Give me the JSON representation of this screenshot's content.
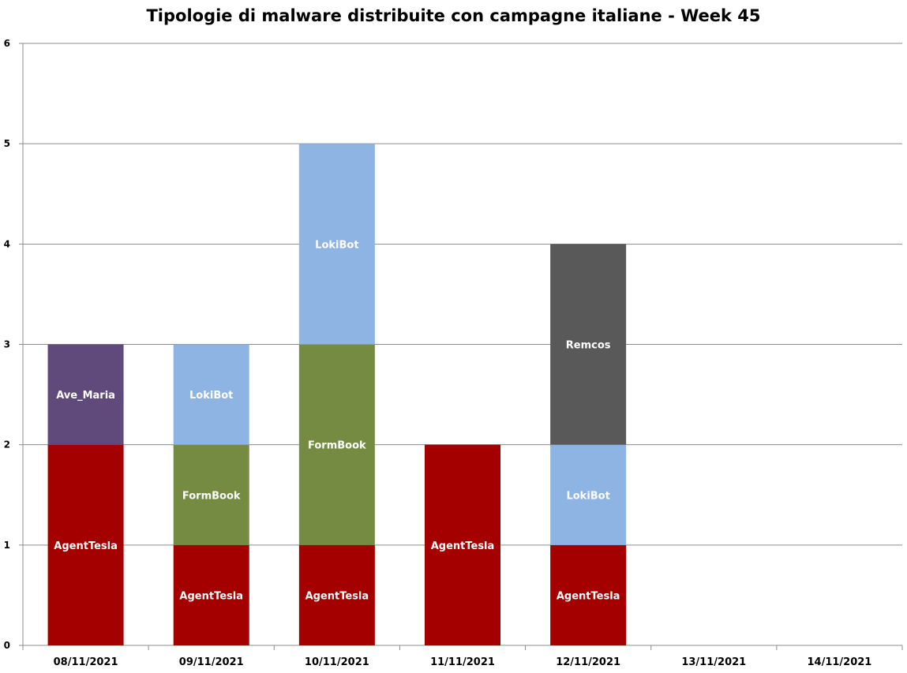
{
  "chart_data": {
    "type": "bar",
    "stacked": true,
    "title": "Tipologie di malware distribuite con campagne italiane - Week 45",
    "xlabel": "",
    "ylabel": "",
    "ylim": [
      0,
      6
    ],
    "yticks": [
      0,
      1,
      2,
      3,
      4,
      5,
      6
    ],
    "grid": true,
    "legend": "none",
    "categories": [
      "08/11/2021",
      "09/11/2021",
      "10/11/2021",
      "11/11/2021",
      "12/11/2021",
      "13/11/2021",
      "14/11/2021"
    ],
    "stacks": [
      {
        "category": "08/11/2021",
        "segments": [
          {
            "label": "AgentTesla",
            "value": 2,
            "color": "#a50000"
          },
          {
            "label": "Ave_Maria",
            "value": 1,
            "color": "#604a7b"
          }
        ]
      },
      {
        "category": "09/11/2021",
        "segments": [
          {
            "label": "AgentTesla",
            "value": 1,
            "color": "#a50000"
          },
          {
            "label": "FormBook",
            "value": 1,
            "color": "#748b41"
          },
          {
            "label": "LokiBot",
            "value": 1,
            "color": "#8eb4e3"
          }
        ]
      },
      {
        "category": "10/11/2021",
        "segments": [
          {
            "label": "AgentTesla",
            "value": 1,
            "color": "#a50000"
          },
          {
            "label": "FormBook",
            "value": 2,
            "color": "#748b41"
          },
          {
            "label": "LokiBot",
            "value": 2,
            "color": "#8eb4e3"
          }
        ]
      },
      {
        "category": "11/11/2021",
        "segments": [
          {
            "label": "AgentTesla",
            "value": 2,
            "color": "#a50000"
          }
        ]
      },
      {
        "category": "12/11/2021",
        "segments": [
          {
            "label": "AgentTesla",
            "value": 1,
            "color": "#a50000"
          },
          {
            "label": "LokiBot",
            "value": 1,
            "color": "#8eb4e3"
          },
          {
            "label": "Remcos",
            "value": 2,
            "color": "#595959"
          }
        ]
      },
      {
        "category": "13/11/2021",
        "segments": []
      },
      {
        "category": "14/11/2021",
        "segments": []
      }
    ]
  }
}
